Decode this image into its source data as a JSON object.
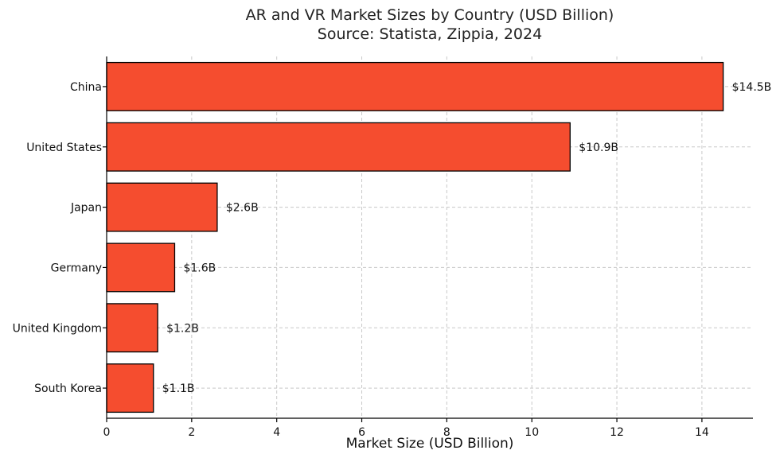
{
  "chart_data": {
    "type": "bar",
    "orientation": "horizontal",
    "title": "AR and VR Market Sizes by Country (USD Billion)",
    "subtitle": "Source: Statista, Zippia, 2024",
    "xlabel": "Market Size (USD Billion)",
    "ylabel": "",
    "xlim": [
      0,
      15.2
    ],
    "xticks": [
      0,
      2,
      4,
      6,
      8,
      10,
      12,
      14
    ],
    "categories": [
      "China",
      "United States",
      "Japan",
      "Germany",
      "United Kingdom",
      "South Korea"
    ],
    "values": [
      14.5,
      10.9,
      2.6,
      1.6,
      1.2,
      1.1
    ],
    "data_labels": [
      "$14.5B",
      "$10.9B",
      "$2.6B",
      "$1.6B",
      "$1.2B",
      "$1.1B"
    ],
    "bar_color": "#f54d2f",
    "grid": true,
    "legend": "none"
  }
}
